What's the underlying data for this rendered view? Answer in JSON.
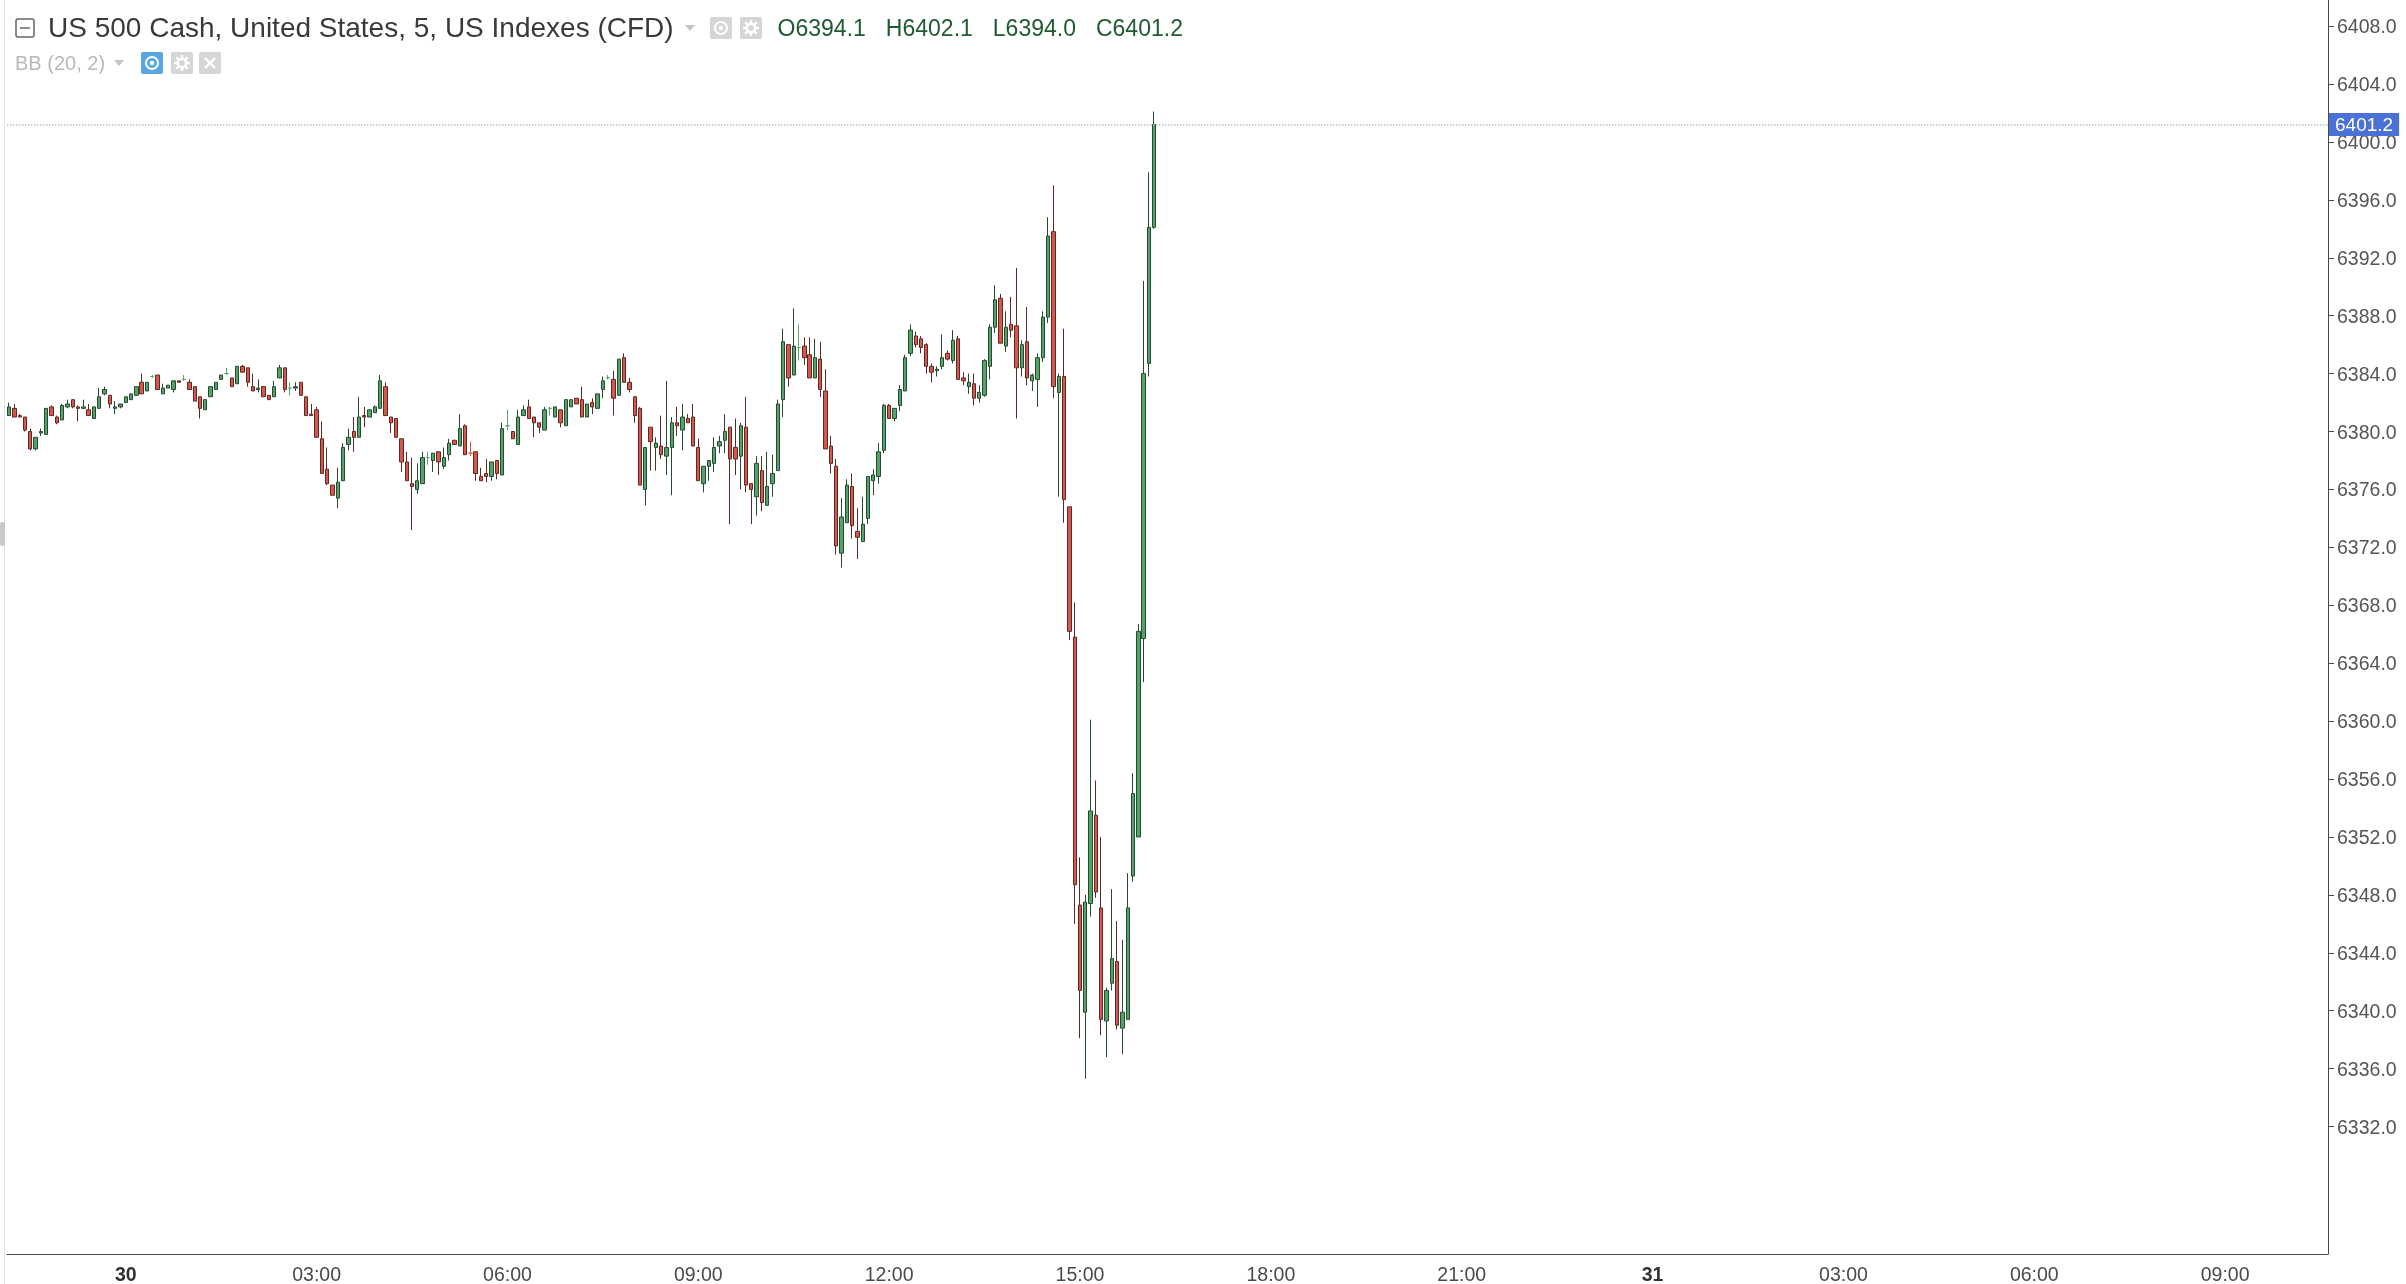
{
  "chart_data": {
    "type": "candlestick",
    "title": "US 500 Cash, United States, 5, US Indexes (CFD)",
    "subtitle": "BB (20, 2)",
    "annotations": [
      "O6394.1",
      "H6402.1",
      "L6394.0",
      "C6401.2"
    ],
    "x": [
      "--07-29T22:10",
      "--07-29T22:15",
      "--07-29T22:20",
      "--07-29T22:25",
      "--07-29T22:30",
      "--07-29T22:35",
      "--07-29T22:40",
      "--07-29T22:45",
      "--07-29T22:50",
      "--07-29T22:55",
      "--07-29T23:00",
      "--07-29T23:05",
      "--07-29T23:10",
      "--07-29T23:15",
      "--07-29T23:20",
      "--07-29T23:25",
      "--07-29T23:30",
      "--07-29T23:35",
      "--07-29T23:40",
      "--07-29T23:45",
      "--07-29T23:50",
      "--07-29T23:55",
      "--07-30T00:00",
      "--07-30T00:05",
      "--07-30T00:10",
      "--07-30T00:15",
      "--07-30T00:20",
      "--07-30T00:25",
      "--07-30T00:30",
      "--07-30T00:35",
      "--07-30T00:40",
      "--07-30T00:45",
      "--07-30T00:50",
      "--07-30T00:55",
      "--07-30T01:00",
      "--07-30T01:05",
      "--07-30T01:10",
      "--07-30T01:15",
      "--07-30T01:20",
      "--07-30T01:25",
      "--07-30T01:30",
      "--07-30T01:35",
      "--07-30T01:40",
      "--07-30T01:45",
      "--07-30T01:50",
      "--07-30T01:55",
      "--07-30T02:00",
      "--07-30T02:05",
      "--07-30T02:10",
      "--07-30T02:15",
      "--07-30T02:20",
      "--07-30T02:25",
      "--07-30T02:30",
      "--07-30T02:35",
      "--07-30T02:40",
      "--07-30T02:45",
      "--07-30T02:50",
      "--07-30T02:55",
      "--07-30T03:00",
      "--07-30T03:05",
      "--07-30T03:10",
      "--07-30T03:15",
      "--07-30T03:20",
      "--07-30T03:25",
      "--07-30T03:30",
      "--07-30T03:35",
      "--07-30T03:40",
      "--07-30T03:45",
      "--07-30T03:50",
      "--07-30T03:55",
      "--07-30T04:00",
      "--07-30T04:05",
      "--07-30T04:10",
      "--07-30T04:15",
      "--07-30T04:20",
      "--07-30T04:25",
      "--07-30T04:30",
      "--07-30T04:35",
      "--07-30T04:40",
      "--07-30T04:45",
      "--07-30T04:50",
      "--07-30T04:55",
      "--07-30T05:00",
      "--07-30T05:05",
      "--07-30T05:10",
      "--07-30T05:15",
      "--07-30T05:20",
      "--07-30T05:25",
      "--07-30T05:30",
      "--07-30T05:35",
      "--07-30T05:40",
      "--07-30T05:45",
      "--07-30T05:50",
      "--07-30T05:55",
      "--07-30T06:00",
      "--07-30T06:05",
      "--07-30T06:10",
      "--07-30T06:15",
      "--07-30T06:20",
      "--07-30T06:25",
      "--07-30T06:30",
      "--07-30T06:35",
      "--07-30T06:40",
      "--07-30T06:45",
      "--07-30T06:50",
      "--07-30T06:55",
      "--07-30T07:00",
      "--07-30T07:05",
      "--07-30T07:10",
      "--07-30T07:15",
      "--07-30T07:20",
      "--07-30T07:25",
      "--07-30T07:30",
      "--07-30T07:35",
      "--07-30T07:40",
      "--07-30T07:45",
      "--07-30T07:50",
      "--07-30T07:55",
      "--07-30T08:00",
      "--07-30T08:05",
      "--07-30T08:10",
      "--07-30T08:15",
      "--07-30T08:20",
      "--07-30T08:25",
      "--07-30T08:30",
      "--07-30T08:35",
      "--07-30T08:40",
      "--07-30T08:45",
      "--07-30T08:50",
      "--07-30T08:55",
      "--07-30T09:00",
      "--07-30T09:05",
      "--07-30T09:10",
      "--07-30T09:15",
      "--07-30T09:20",
      "--07-30T09:25",
      "--07-30T09:30",
      "--07-30T09:35",
      "--07-30T09:40",
      "--07-30T09:45",
      "--07-30T09:50",
      "--07-30T09:55",
      "--07-30T10:00",
      "--07-30T10:05",
      "--07-30T10:10",
      "--07-30T10:15",
      "--07-30T10:20",
      "--07-30T10:25",
      "--07-30T10:30",
      "--07-30T10:35",
      "--07-30T10:40",
      "--07-30T10:45",
      "--07-30T10:50",
      "--07-30T10:55",
      "--07-30T11:00",
      "--07-30T11:05",
      "--07-30T11:10",
      "--07-30T11:15",
      "--07-30T11:20",
      "--07-30T11:25",
      "--07-30T11:30",
      "--07-30T11:35",
      "--07-30T11:40",
      "--07-30T11:45",
      "--07-30T11:50",
      "--07-30T11:55",
      "--07-30T12:00",
      "--07-30T12:05",
      "--07-30T12:10",
      "--07-30T12:15",
      "--07-30T12:20",
      "--07-30T12:25",
      "--07-30T12:30",
      "--07-30T12:35",
      "--07-30T12:40",
      "--07-30T12:45",
      "--07-30T12:50",
      "--07-30T12:55",
      "--07-30T13:00",
      "--07-30T13:05",
      "--07-30T13:10",
      "--07-30T13:15",
      "--07-30T13:20",
      "--07-30T13:25",
      "--07-30T13:30",
      "--07-30T13:35",
      "--07-30T13:40",
      "--07-30T13:45",
      "--07-30T13:50",
      "--07-30T13:55",
      "--07-30T14:00",
      "--07-30T14:05",
      "--07-30T14:10",
      "--07-30T14:15",
      "--07-30T14:20",
      "--07-30T14:25",
      "--07-30T14:30",
      "--07-30T14:35",
      "--07-30T14:40",
      "--07-30T14:45",
      "--07-30T14:50",
      "--07-30T14:55",
      "--07-30T15:00",
      "--07-30T15:05",
      "--07-30T15:10",
      "--07-30T15:15",
      "--07-30T15:20",
      "--07-30T15:25",
      "--07-30T15:30",
      "--07-30T15:35",
      "--07-30T15:40",
      "--07-30T15:45",
      "--07-30T15:50",
      "--07-30T15:55",
      "--07-30T16:00",
      "--07-30T16:05",
      "--07-30T16:10"
    ],
    "ohlc": [
      [
        6381.1,
        6382.0,
        6381.1,
        6381.7
      ],
      [
        6381.6,
        6381.9,
        6381.0,
        6381.0
      ],
      [
        6381.1,
        6381.2,
        6381.0,
        6381.0
      ],
      [
        6381.0,
        6381.0,
        6380.0,
        6380.1
      ],
      [
        6380.0,
        6380.2,
        6378.7,
        6378.8
      ],
      [
        6378.8,
        6379.6,
        6378.7,
        6379.6
      ],
      [
        6379.9,
        6380.2,
        6379.7,
        6380.0
      ],
      [
        6379.8,
        6381.6,
        6379.8,
        6381.6
      ],
      [
        6381.7,
        6381.8,
        6381.1,
        6381.1
      ],
      [
        6381.0,
        6381.1,
        6380.5,
        6380.6
      ],
      [
        6380.8,
        6381.9,
        6380.8,
        6381.8
      ],
      [
        6381.7,
        6382.2,
        6381.6,
        6381.9
      ],
      [
        6382.2,
        6382.2,
        6381.6,
        6381.7
      ],
      [
        6381.7,
        6381.8,
        6380.7,
        6381.6
      ],
      [
        6381.6,
        6382.2,
        6381.6,
        6381.7
      ],
      [
        6381.5,
        6381.9,
        6381.1,
        6381.1
      ],
      [
        6380.9,
        6381.7,
        6380.9,
        6381.7
      ],
      [
        6381.6,
        6383.0,
        6381.6,
        6382.4
      ],
      [
        6382.6,
        6383.1,
        6382.5,
        6382.9
      ],
      [
        6382.5,
        6382.5,
        6381.6,
        6381.9
      ],
      [
        6381.6,
        6382.1,
        6381.2,
        6381.7
      ],
      [
        6381.7,
        6381.9,
        6381.6,
        6381.9
      ],
      [
        6382.0,
        6382.4,
        6382.0,
        6382.4
      ],
      [
        6382.2,
        6382.6,
        6382.2,
        6382.6
      ],
      [
        6382.5,
        6383.1,
        6382.5,
        6383.1
      ],
      [
        6383.4,
        6384.0,
        6382.6,
        6382.6
      ],
      [
        6382.8,
        6383.4,
        6382.8,
        6383.4
      ],
      [
        6383.8,
        6383.9,
        6383.7,
        6383.8
      ],
      [
        6383.9,
        6383.9,
        6382.9,
        6382.9
      ],
      [
        6382.6,
        6383.3,
        6382.6,
        6383.0
      ],
      [
        6383.0,
        6383.2,
        6383.0,
        6383.2
      ],
      [
        6382.9,
        6383.5,
        6382.7,
        6383.5
      ],
      [
        6383.5,
        6383.5,
        6383.4,
        6383.4
      ],
      [
        6383.6,
        6383.9,
        6383.5,
        6383.6
      ],
      [
        6383.4,
        6383.6,
        6382.9,
        6382.9
      ],
      [
        6383.1,
        6383.1,
        6382.1,
        6382.1
      ],
      [
        6382.4,
        6382.4,
        6380.9,
        6381.6
      ],
      [
        6381.5,
        6382.2,
        6381.5,
        6382.2
      ],
      [
        6382.4,
        6383.1,
        6382.4,
        6383.1
      ],
      [
        6382.9,
        6383.4,
        6382.9,
        6383.4
      ],
      [
        6383.6,
        6383.9,
        6383.6,
        6383.9
      ],
      [
        6384.0,
        6384.4,
        6383.9,
        6384.0
      ],
      [
        6383.7,
        6383.7,
        6383.1,
        6383.1
      ],
      [
        6383.3,
        6384.5,
        6383.3,
        6384.5
      ],
      [
        6384.5,
        6384.6,
        6384.1,
        6384.1
      ],
      [
        6384.4,
        6384.4,
        6383.1,
        6383.4
      ],
      [
        6383.1,
        6384.0,
        6382.8,
        6382.8
      ],
      [
        6382.9,
        6383.6,
        6382.7,
        6383.0
      ],
      [
        6383.1,
        6383.1,
        6382.4,
        6382.4
      ],
      [
        6382.5,
        6382.5,
        6382.2,
        6382.2
      ],
      [
        6382.4,
        6383.5,
        6382.4,
        6383.1
      ],
      [
        6383.7,
        6384.6,
        6383.7,
        6384.4
      ],
      [
        6384.4,
        6384.4,
        6382.7,
        6382.9
      ],
      [
        6383.0,
        6383.4,
        6382.5,
        6383.0
      ],
      [
        6383.0,
        6383.4,
        6382.8,
        6383.1
      ],
      [
        6383.4,
        6383.4,
        6382.5,
        6382.5
      ],
      [
        6382.4,
        6382.4,
        6381.1,
        6381.1
      ],
      [
        6381.2,
        6381.9,
        6381.1,
        6381.1
      ],
      [
        6381.5,
        6381.7,
        6379.6,
        6379.6
      ],
      [
        6379.5,
        6380.7,
        6377.1,
        6377.1
      ],
      [
        6377.4,
        6378.9,
        6376.3,
        6376.4
      ],
      [
        6376.3,
        6376.3,
        6375.6,
        6375.6
      ],
      [
        6375.4,
        6377.5,
        6374.7,
        6376.5
      ],
      [
        6376.6,
        6379.2,
        6376.6,
        6378.9
      ],
      [
        6379.1,
        6380.2,
        6378.7,
        6379.6
      ],
      [
        6380.0,
        6381.0,
        6378.6,
        6379.6
      ],
      [
        6379.6,
        6382.4,
        6379.6,
        6381.0
      ],
      [
        6381.1,
        6381.7,
        6380.3,
        6381.0
      ],
      [
        6381.0,
        6381.5,
        6381.0,
        6381.5
      ],
      [
        6381.3,
        6381.8,
        6381.3,
        6381.7
      ],
      [
        6381.6,
        6383.9,
        6381.6,
        6383.5
      ],
      [
        6383.1,
        6383.4,
        6381.1,
        6381.1
      ],
      [
        6381.0,
        6381.0,
        6379.9,
        6380.6
      ],
      [
        6380.9,
        6380.9,
        6379.6,
        6379.6
      ],
      [
        6379.5,
        6379.5,
        6377.2,
        6377.9
      ],
      [
        6377.9,
        6378.6,
        6376.6,
        6376.6
      ],
      [
        6376.4,
        6378.2,
        6373.2,
        6376.2
      ],
      [
        6376.0,
        6377.8,
        6375.7,
        6376.6
      ],
      [
        6376.4,
        6378.6,
        6376.4,
        6378.2
      ],
      [
        6378.2,
        6378.6,
        6377.7,
        6378.2
      ],
      [
        6378.0,
        6378.5,
        6377.2,
        6378.5
      ],
      [
        6378.6,
        6378.6,
        6377.0,
        6377.9
      ],
      [
        6377.6,
        6378.9,
        6377.4,
        6378.2
      ],
      [
        6378.4,
        6379.5,
        6378.0,
        6379.2
      ],
      [
        6379.4,
        6379.4,
        6379.1,
        6379.1
      ],
      [
        6379.0,
        6381.2,
        6379.0,
        6380.2
      ],
      [
        6380.4,
        6380.5,
        6378.4,
        6378.4
      ],
      [
        6378.5,
        6379.3,
        6378.3,
        6378.5
      ],
      [
        6378.6,
        6378.6,
        6376.6,
        6377.1
      ],
      [
        6376.9,
        6377.5,
        6376.6,
        6376.6
      ],
      [
        6377.1,
        6378.1,
        6376.5,
        6376.9
      ],
      [
        6376.9,
        6377.9,
        6376.6,
        6377.9
      ],
      [
        6378.0,
        6378.0,
        6376.7,
        6377.1
      ],
      [
        6377.0,
        6380.6,
        6377.0,
        6380.2
      ],
      [
        6380.4,
        6381.5,
        6380.1,
        6380.4
      ],
      [
        6380.0,
        6380.0,
        6379.5,
        6379.5
      ],
      [
        6379.1,
        6381.5,
        6379.1,
        6381.0
      ],
      [
        6381.1,
        6381.8,
        6381.1,
        6381.5
      ],
      [
        6381.7,
        6382.2,
        6380.9,
        6380.9
      ],
      [
        6381.0,
        6381.0,
        6379.6,
        6380.6
      ],
      [
        6380.6,
        6380.6,
        6379.9,
        6380.3
      ],
      [
        6380.1,
        6381.7,
        6380.1,
        6381.5
      ],
      [
        6381.6,
        6381.7,
        6381.1,
        6381.6
      ],
      [
        6381.0,
        6381.7,
        6381.0,
        6381.7
      ],
      [
        6381.5,
        6381.5,
        6380.3,
        6380.6
      ],
      [
        6380.4,
        6382.2,
        6380.4,
        6382.2
      ],
      [
        6381.7,
        6382.2,
        6381.7,
        6382.2
      ],
      [
        6382.3,
        6382.3,
        6381.9,
        6381.9
      ],
      [
        6382.2,
        6383.1,
        6381.0,
        6381.0
      ],
      [
        6381.0,
        6381.9,
        6381.0,
        6381.9
      ],
      [
        6382.0,
        6382.3,
        6381.2,
        6381.7
      ],
      [
        6381.6,
        6382.6,
        6381.6,
        6382.6
      ],
      [
        6382.9,
        6383.8,
        6382.3,
        6383.5
      ],
      [
        6383.7,
        6383.9,
        6383.6,
        6383.7
      ],
      [
        6383.6,
        6384.2,
        6381.1,
        6382.3
      ],
      [
        6382.5,
        6385.0,
        6382.5,
        6385.0
      ],
      [
        6385.1,
        6385.4,
        6383.4,
        6383.4
      ],
      [
        6383.4,
        6383.7,
        6382.7,
        6382.9
      ],
      [
        6382.4,
        6382.4,
        6380.6,
        6381.1
      ],
      [
        6381.6,
        6381.7,
        6376.3,
        6376.3
      ],
      [
        6376.0,
        6378.9,
        6374.9,
        6378.9
      ],
      [
        6380.3,
        6380.3,
        6377.3,
        6379.3
      ],
      [
        6378.9,
        6379.6,
        6377.3,
        6379.2
      ],
      [
        6379.0,
        6381.1,
        6378.1,
        6378.4
      ],
      [
        6378.3,
        6383.5,
        6377.0,
        6378.9
      ],
      [
        6378.9,
        6381.0,
        6375.6,
        6380.6
      ],
      [
        6380.6,
        6381.7,
        6379.7,
        6380.4
      ],
      [
        6380.1,
        6381.9,
        6378.7,
        6381.0
      ],
      [
        6380.9,
        6381.2,
        6380.6,
        6380.6
      ],
      [
        6381.0,
        6381.9,
        6379.0,
        6379.0
      ],
      [
        6378.9,
        6379.5,
        6376.6,
        6376.6
      ],
      [
        6376.4,
        6377.6,
        6375.8,
        6377.6
      ],
      [
        6377.6,
        6378.0,
        6376.6,
        6378.0
      ],
      [
        6377.8,
        6379.6,
        6377.2,
        6378.9
      ],
      [
        6379.0,
        6379.7,
        6378.5,
        6379.3
      ],
      [
        6379.4,
        6381.2,
        6378.5,
        6380.0
      ],
      [
        6380.3,
        6380.3,
        6373.6,
        6378.1
      ],
      [
        6378.9,
        6380.9,
        6377.0,
        6378.1
      ],
      [
        6378.3,
        6380.6,
        6376.0,
        6380.4
      ],
      [
        6380.3,
        6382.4,
        6375.8,
        6376.3
      ],
      [
        6376.4,
        6376.4,
        6373.6,
        6376.0
      ],
      [
        6375.5,
        6378.3,
        6374.2,
        6377.8
      ],
      [
        6377.3,
        6378.3,
        6374.5,
        6375.1
      ],
      [
        6374.9,
        6378.6,
        6374.9,
        6376.2
      ],
      [
        6376.4,
        6378.4,
        6375.5,
        6377.1
      ],
      [
        6377.3,
        6382.2,
        6377.3,
        6381.9
      ],
      [
        6382.2,
        6387.1,
        6381.0,
        6386.2
      ],
      [
        6386.0,
        6386.0,
        6383.1,
        6383.7
      ],
      [
        6383.9,
        6388.5,
        6383.9,
        6385.9
      ],
      [
        6385.8,
        6387.4,
        6384.9,
        6385.8
      ],
      [
        6385.9,
        6386.5,
        6384.6,
        6385.1
      ],
      [
        6385.3,
        6386.5,
        6383.7,
        6383.7
      ],
      [
        6383.7,
        6386.4,
        6383.7,
        6385.1
      ],
      [
        6385.0,
        6386.2,
        6382.4,
        6382.9
      ],
      [
        6382.8,
        6384.3,
        6378.8,
        6378.8
      ],
      [
        6379.0,
        6379.7,
        6377.1,
        6377.8
      ],
      [
        6377.6,
        6378.1,
        6371.5,
        6372.1
      ],
      [
        6371.6,
        6375.4,
        6370.6,
        6374.1
      ],
      [
        6373.7,
        6376.7,
        6373.7,
        6376.3
      ],
      [
        6376.2,
        6377.1,
        6372.6,
        6373.5
      ],
      [
        6373.1,
        6374.7,
        6371.2,
        6372.7
      ],
      [
        6372.4,
        6375.5,
        6372.4,
        6373.6
      ],
      [
        6374.0,
        6376.9,
        6373.6,
        6376.9
      ],
      [
        6376.6,
        6377.4,
        6375.6,
        6377.0
      ],
      [
        6376.9,
        6379.2,
        6376.4,
        6378.6
      ],
      [
        6378.7,
        6381.9,
        6378.5,
        6381.8
      ],
      [
        6381.8,
        6381.9,
        6380.9,
        6380.9
      ],
      [
        6380.9,
        6381.6,
        6380.7,
        6381.6
      ],
      [
        6381.8,
        6383.2,
        6381.4,
        6382.9
      ],
      [
        6382.8,
        6385.3,
        6382.8,
        6385.1
      ],
      [
        6385.4,
        6387.4,
        6385.2,
        6387.0
      ],
      [
        6386.6,
        6386.9,
        6385.8,
        6386.0
      ],
      [
        6386.4,
        6386.6,
        6385.4,
        6385.8
      ],
      [
        6386.0,
        6386.1,
        6384.0,
        6384.5
      ],
      [
        6384.5,
        6384.7,
        6383.4,
        6384.1
      ],
      [
        6384.2,
        6384.5,
        6383.8,
        6384.3
      ],
      [
        6384.5,
        6386.7,
        6384.3,
        6385.1
      ],
      [
        6385.4,
        6385.6,
        6384.9,
        6385.0
      ],
      [
        6384.9,
        6387.0,
        6384.7,
        6386.3
      ],
      [
        6386.4,
        6386.6,
        6383.6,
        6383.6
      ],
      [
        6383.7,
        6384.1,
        6383.2,
        6383.5
      ],
      [
        6383.1,
        6384.0,
        6382.6,
        6383.4
      ],
      [
        6383.3,
        6384.0,
        6381.8,
        6382.3
      ],
      [
        6382.3,
        6383.2,
        6382.0,
        6382.7
      ],
      [
        6382.5,
        6385.0,
        6382.4,
        6384.9
      ],
      [
        6384.5,
        6387.4,
        6383.6,
        6387.2
      ],
      [
        6387.2,
        6390.1,
        6386.8,
        6389.1
      ],
      [
        6389.2,
        6389.5,
        6386.1,
        6386.1
      ],
      [
        6385.9,
        6388.3,
        6385.5,
        6387.2
      ],
      [
        6387.4,
        6389.3,
        6386.5,
        6387.0
      ],
      [
        6387.3,
        6391.3,
        6380.9,
        6384.4
      ],
      [
        6384.4,
        6386.3,
        6383.8,
        6386.0
      ],
      [
        6386.2,
        6388.6,
        6383.2,
        6383.7
      ],
      [
        6383.5,
        6384.0,
        6382.8,
        6383.9
      ],
      [
        6383.6,
        6385.4,
        6381.7,
        6385.1
      ],
      [
        6385.1,
        6388.3,
        6384.8,
        6387.9
      ],
      [
        6387.9,
        6394.8,
        6387.5,
        6393.5
      ],
      [
        6393.8,
        6397.0,
        6382.3,
        6383.1
      ],
      [
        6382.7,
        6384.0,
        6375.5,
        6383.8
      ],
      [
        6383.8,
        6387.1,
        6373.7,
        6375.3
      ],
      [
        6374.8,
        6374.8,
        6365.6,
        6366.2
      ],
      [
        6365.8,
        6368.2,
        6346.0,
        6348.7
      ],
      [
        6347.3,
        6350.6,
        6338.1,
        6341.4
      ],
      [
        6339.9,
        6348.0,
        6335.3,
        6347.5
      ],
      [
        6347.4,
        6360.1,
        6346.5,
        6353.8
      ],
      [
        6353.5,
        6355.9,
        6347.8,
        6348.2
      ],
      [
        6347.1,
        6352.0,
        6338.3,
        6339.4
      ],
      [
        6339.3,
        6341.6,
        6336.8,
        6341.4
      ],
      [
        6341.9,
        6348.4,
        6341.4,
        6343.6
      ],
      [
        6343.4,
        6346.2,
        6338.7,
        6339.0
      ],
      [
        6338.8,
        6344.9,
        6337.0,
        6339.9
      ],
      [
        6339.4,
        6349.5,
        6339.4,
        6347.1
      ],
      [
        6349.3,
        6356.4,
        6348.9,
        6355.0
      ],
      [
        6352.0,
        6366.7,
        6352.0,
        6366.2
      ],
      [
        6365.7,
        6390.4,
        6362.7,
        6384.0
      ],
      [
        6384.7,
        6397.9,
        6383.8,
        6394.1
      ],
      [
        6394.1,
        6402.1,
        6394.0,
        6401.2
      ]
    ],
    "colors": [
      "#54a46a",
      "#d6584c",
      "#d6584c",
      "#d6584c",
      "#d6584c",
      "#54a46a",
      "#54a46a",
      "#54a46a",
      "#d6584c",
      "#d6584c",
      "#54a46a",
      "#54a46a",
      "#d6584c",
      "#d6584c",
      "#54a46a",
      "#d6584c",
      "#54a46a",
      "#54a46a",
      "#54a46a",
      "#d6584c",
      "#54a46a",
      "#54a46a",
      "#54a46a",
      "#54a46a",
      "#54a46a",
      "#d6584c",
      "#54a46a",
      "#54a46a",
      "#d6584c",
      "#54a46a",
      "#54a46a",
      "#54a46a",
      "#d6584c",
      "#54a46a",
      "#d6584c",
      "#d6584c",
      "#d6584c",
      "#54a46a",
      "#54a46a",
      "#54a46a",
      "#54a46a",
      "#54a46a",
      "#d6584c",
      "#54a46a",
      "#d6584c",
      "#d6584c",
      "#d6584c",
      "#54a46a",
      "#d6584c",
      "#d6584c",
      "#54a46a",
      "#54a46a",
      "#d6584c",
      "#54a46a",
      "#54a46a",
      "#d6584c",
      "#d6584c",
      "#d6584c",
      "#d6584c",
      "#d6584c",
      "#d6584c",
      "#d6584c",
      "#54a46a",
      "#54a46a",
      "#54a46a",
      "#d6584c",
      "#54a46a",
      "#d6584c",
      "#54a46a",
      "#54a46a",
      "#54a46a",
      "#d6584c",
      "#d6584c",
      "#d6584c",
      "#d6584c",
      "#d6584c",
      "#d6584c",
      "#54a46a",
      "#54a46a",
      "#54a46a",
      "#54a46a",
      "#d6584c",
      "#54a46a",
      "#54a46a",
      "#d6584c",
      "#54a46a",
      "#d6584c",
      "#d6584c",
      "#d6584c",
      "#d6584c",
      "#d6584c",
      "#54a46a",
      "#d6584c",
      "#54a46a",
      "#54a46a",
      "#d6584c",
      "#54a46a",
      "#54a46a",
      "#d6584c",
      "#d6584c",
      "#d6584c",
      "#54a46a",
      "#54a46a",
      "#54a46a",
      "#d6584c",
      "#54a46a",
      "#54a46a",
      "#d6584c",
      "#d6584c",
      "#54a46a",
      "#d6584c",
      "#54a46a",
      "#54a46a",
      "#54a46a",
      "#d6584c",
      "#54a46a",
      "#d6584c",
      "#d6584c",
      "#d6584c",
      "#d6584c",
      "#54a46a",
      "#d6584c",
      "#54a46a",
      "#d6584c",
      "#54a46a",
      "#54a46a",
      "#d6584c",
      "#54a46a",
      "#d6584c",
      "#d6584c",
      "#d6584c",
      "#54a46a",
      "#54a46a",
      "#54a46a",
      "#54a46a",
      "#54a46a",
      "#d6584c",
      "#d6584c",
      "#54a46a",
      "#d6584c",
      "#d6584c",
      "#54a46a",
      "#d6584c",
      "#54a46a",
      "#54a46a",
      "#54a46a",
      "#54a46a",
      "#d6584c",
      "#54a46a",
      "#54a46a",
      "#d6584c",
      "#d6584c",
      "#54a46a",
      "#d6584c",
      "#d6584c",
      "#d6584c",
      "#d6584c",
      "#54a46a",
      "#54a46a",
      "#d6584c",
      "#d6584c",
      "#54a46a",
      "#54a46a",
      "#54a46a",
      "#54a46a",
      "#54a46a",
      "#d6584c",
      "#54a46a",
      "#54a46a",
      "#54a46a",
      "#54a46a",
      "#d6584c",
      "#d6584c",
      "#d6584c",
      "#d6584c",
      "#54a46a",
      "#54a46a",
      "#d6584c",
      "#54a46a",
      "#d6584c",
      "#d6584c",
      "#54a46a",
      "#d6584c",
      "#54a46a",
      "#54a46a",
      "#54a46a",
      "#54a46a",
      "#d6584c",
      "#54a46a",
      "#d6584c",
      "#d6584c",
      "#54a46a",
      "#d6584c",
      "#54a46a",
      "#54a46a",
      "#54a46a",
      "#54a46a",
      "#d6584c",
      "#54a46a",
      "#d6584c",
      "#d6584c",
      "#d6584c",
      "#d6584c",
      "#54a46a",
      "#54a46a",
      "#d6584c",
      "#d6584c",
      "#54a46a",
      "#54a46a",
      "#d6584c",
      "#54a46a",
      "#54a46a",
      "#54a46a",
      "#54a46a",
      "#54a46a",
      "#54a46a",
      "#54a46a"
    ],
    "xlim": [
      "--07-29T22:08",
      "--07-31T10:37"
    ],
    "ylim": [
      6323.2,
      6409.8
    ],
    "xticks": [
      {
        "value": "--07-30T00:00",
        "label": "30"
      },
      {
        "value": "--07-30T03:00",
        "label": "03:00"
      },
      {
        "value": "--07-30T06:00",
        "label": "06:00"
      },
      {
        "value": "--07-30T09:00",
        "label": "09:00"
      },
      {
        "value": "--07-30T12:00",
        "label": "12:00"
      },
      {
        "value": "--07-30T15:00",
        "label": "15:00"
      },
      {
        "value": "--07-30T18:00",
        "label": "18:00"
      },
      {
        "value": "--07-30T21:00",
        "label": "21:00"
      },
      {
        "value": "--07-31T00:00",
        "label": "31"
      },
      {
        "value": "--07-31T03:00",
        "label": "03:00"
      },
      {
        "value": "--07-31T06:00",
        "label": "06:00"
      },
      {
        "value": "--07-31T09:00",
        "label": "09:00"
      }
    ],
    "yticks": [
      {
        "value": 6332,
        "label": "6332.0"
      },
      {
        "value": 6336,
        "label": "6336.0"
      },
      {
        "value": 6340,
        "label": "6340.0"
      },
      {
        "value": 6344,
        "label": "6344.0"
      },
      {
        "value": 6348,
        "label": "6348.0"
      },
      {
        "value": 6352,
        "label": "6352.0"
      },
      {
        "value": 6356,
        "label": "6356.0"
      },
      {
        "value": 6360,
        "label": "6360.0"
      },
      {
        "value": 6364,
        "label": "6364.0"
      },
      {
        "value": 6368,
        "label": "6368.0"
      },
      {
        "value": 6372,
        "label": "6372.0"
      },
      {
        "value": 6376,
        "label": "6376.0"
      },
      {
        "value": 6380,
        "label": "6380.0"
      },
      {
        "value": 6384,
        "label": "6384.0"
      },
      {
        "value": 6388,
        "label": "6388.0"
      },
      {
        "value": 6392,
        "label": "6392.0"
      },
      {
        "value": 6396,
        "label": "6396.0"
      },
      {
        "value": 6400,
        "label": "6400.0"
      },
      {
        "value": 6404,
        "label": "6404.0"
      },
      {
        "value": 6408,
        "label": "6408.0"
      }
    ],
    "ref_lines": [
      {
        "axis": "y",
        "value": 6401.2,
        "label": "6401.2",
        "color": "#b4bccb",
        "line_style": "dotted"
      }
    ]
  }
}
